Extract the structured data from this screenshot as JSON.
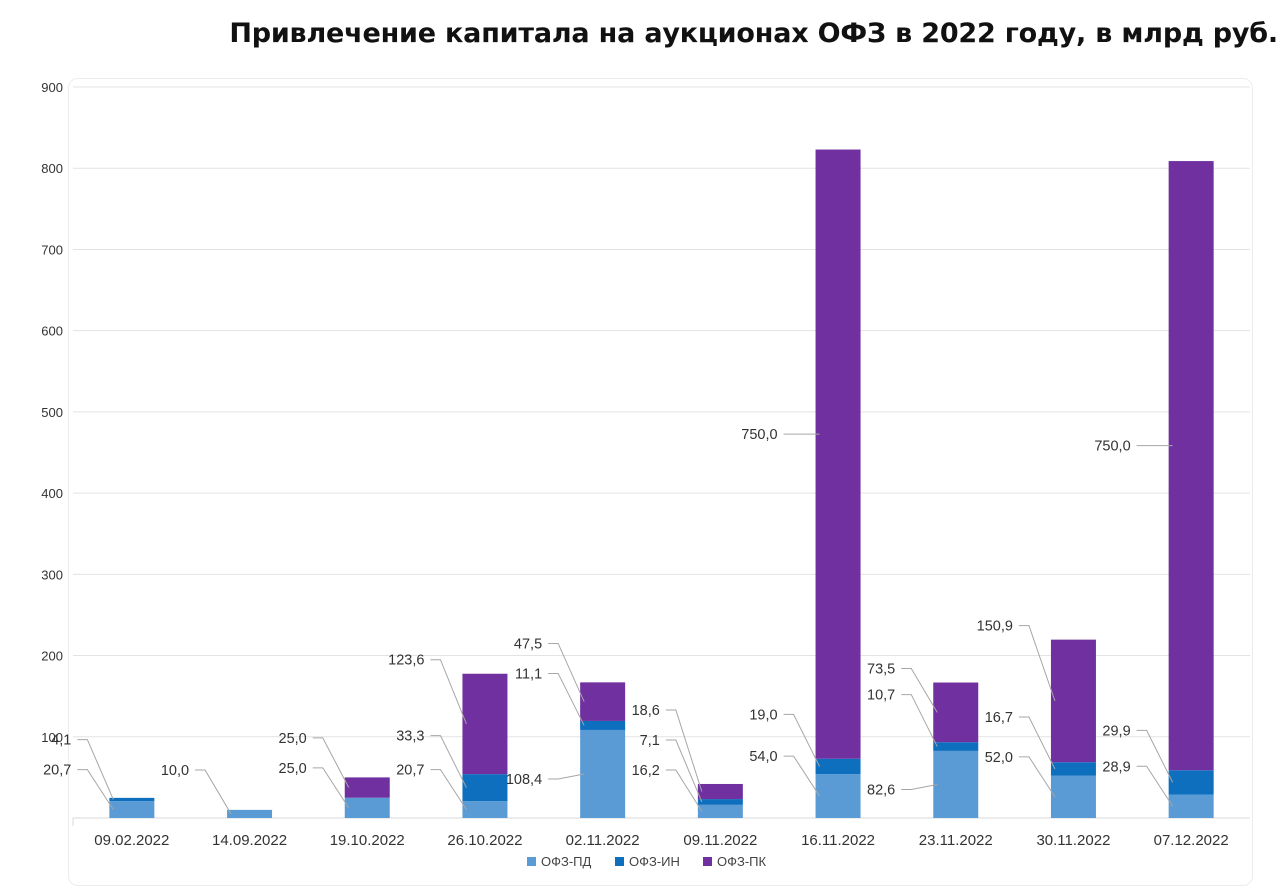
{
  "title": "Привлечение капитала на аукционах ОФЗ в 2022 году, в млрд руб.",
  "colors": {
    "pd": "#5b9bd5",
    "in": "#0f6fbf",
    "pk": "#7030a0"
  },
  "chart_data": {
    "type": "bar",
    "stacked": true,
    "title": "Привлечение капитала на аукционах ОФЗ в 2022 году, в млрд руб.",
    "xlabel": "",
    "ylabel": "",
    "ylim": [
      0,
      900
    ],
    "yticks": [
      "100",
      "200",
      "300",
      "400",
      "500",
      "600",
      "700",
      "800",
      "900"
    ],
    "grid": true,
    "legend_position": "bottom",
    "categories": [
      "09.02.2022",
      "14.09.2022",
      "19.10.2022",
      "26.10.2022",
      "02.11.2022",
      "09.11.2022",
      "16.11.2022",
      "23.11.2022",
      "30.11.2022",
      "07.12.2022"
    ],
    "series": [
      {
        "name": "ОФЗ-ПД",
        "key": "pd",
        "values": [
          20.7,
          10.0,
          25.0,
          20.7,
          108.4,
          16.2,
          54.0,
          82.6,
          52.0,
          28.9
        ],
        "labels": [
          "20,7",
          "10,0",
          "25,0",
          "20,7",
          "108,4",
          "16,2",
          "54,0",
          "82,6",
          "52,0",
          "28,9"
        ]
      },
      {
        "name": "ОФЗ-ИН",
        "key": "in",
        "values": [
          4.1,
          0,
          0,
          33.3,
          11.1,
          7.1,
          19.0,
          10.7,
          16.7,
          29.9
        ],
        "labels": [
          "4,1",
          "",
          "",
          "33,3",
          "11,1",
          "7,1",
          "19,0",
          "10,7",
          "16,7",
          "29,9"
        ]
      },
      {
        "name": "ОФЗ-ПК",
        "key": "pk",
        "values": [
          0,
          0,
          25.0,
          123.6,
          47.5,
          18.6,
          750.0,
          73.5,
          150.9,
          750.0
        ],
        "labels": [
          "",
          "",
          "25,0",
          "123,6",
          "47,5",
          "18,6",
          "750,0",
          "73,5",
          "150,9",
          "750,0"
        ]
      }
    ]
  }
}
